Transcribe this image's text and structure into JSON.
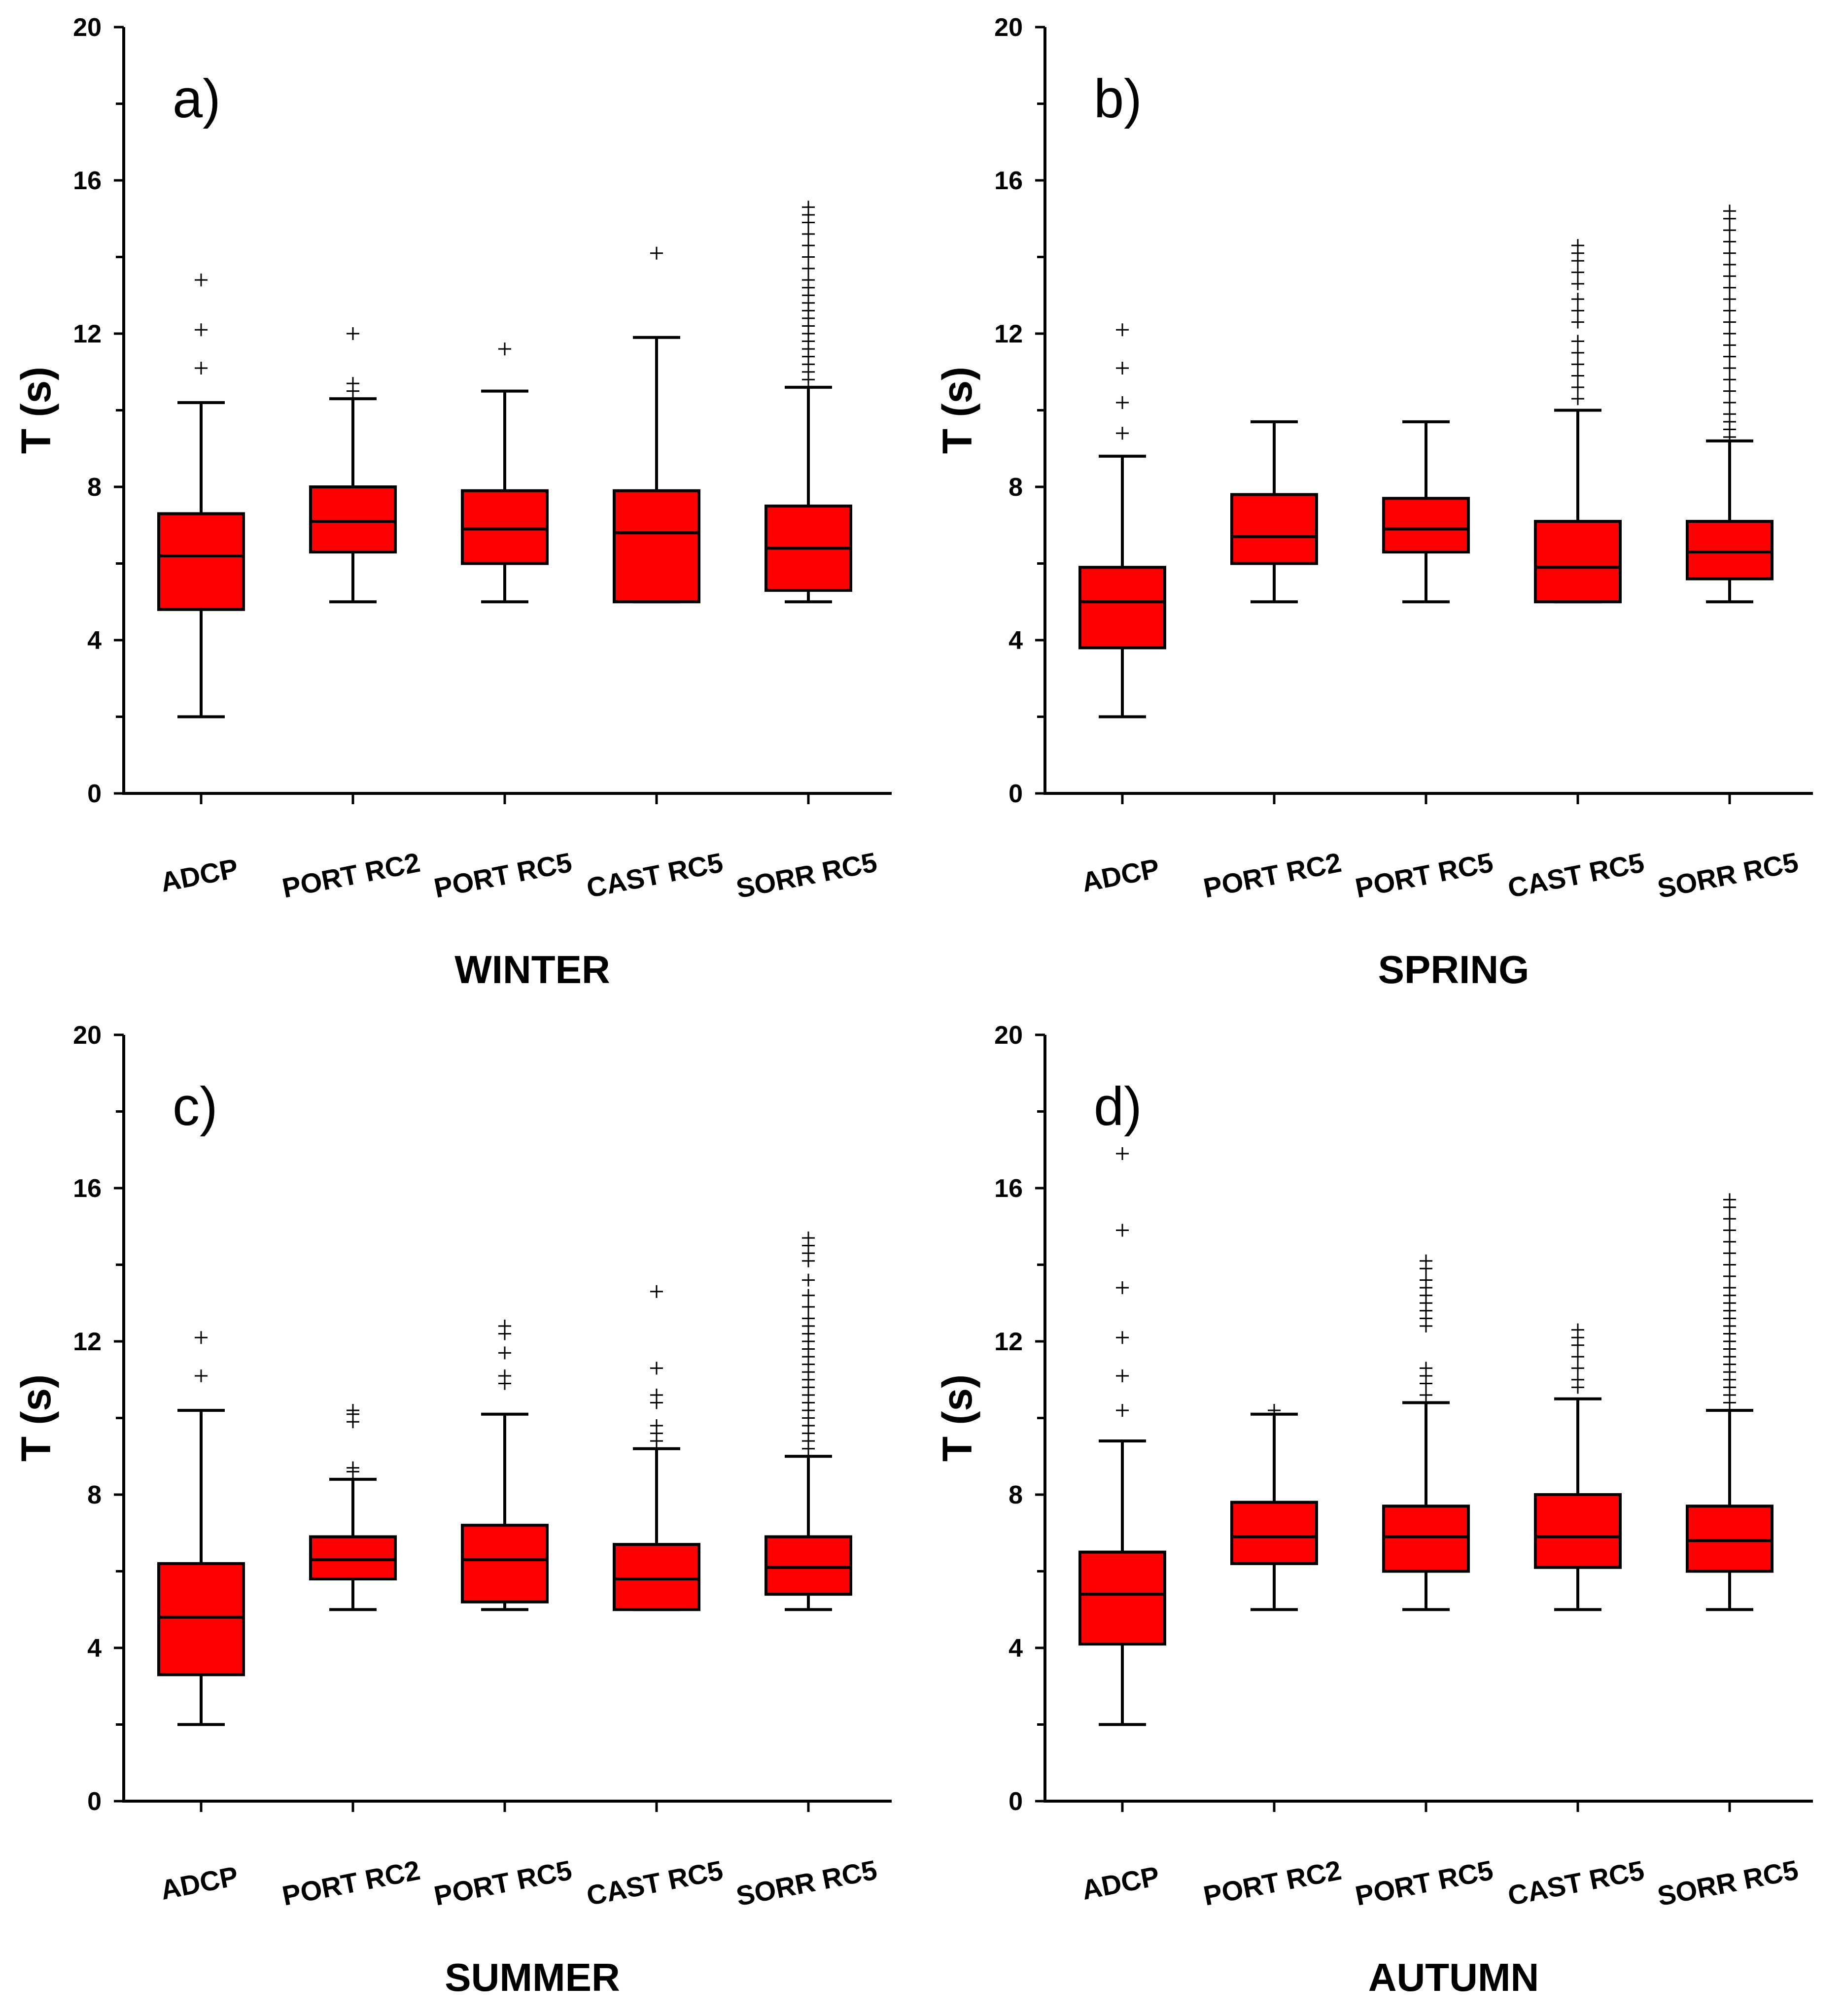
{
  "colors": {
    "box_fill": "#ff0000",
    "stroke": "#000000",
    "background": "#ffffff"
  },
  "chart_data": [
    {
      "type": "boxplot",
      "panel_label": "a)",
      "title": "WINTER",
      "xlabel": "",
      "ylabel": "T (s)",
      "ylim": [
        0,
        20
      ],
      "yticks": [
        "0",
        "4",
        "8",
        "12",
        "16",
        "20"
      ],
      "categories": [
        "ADCP",
        "PORT RC2",
        "PORT RC5",
        "CAST RC5",
        "SORR RC5"
      ],
      "boxes": [
        {
          "category": "ADCP",
          "whisker_low": 2,
          "q1": 4.8,
          "median": 6.2,
          "q3": 7.3,
          "whisker_high": 10.2,
          "outliers": [
            11.1,
            12.1,
            13.4
          ]
        },
        {
          "category": "PORT RC2",
          "whisker_low": 5,
          "q1": 6.3,
          "median": 7.1,
          "q3": 8.0,
          "whisker_high": 10.3,
          "outliers": [
            10.5,
            10.7,
            12.0
          ]
        },
        {
          "category": "PORT RC5",
          "whisker_low": 5,
          "q1": 6.0,
          "median": 6.9,
          "q3": 7.9,
          "whisker_high": 10.5,
          "outliers": [
            11.6
          ]
        },
        {
          "category": "CAST RC5",
          "whisker_low": 5,
          "q1": 5.0,
          "median": 6.8,
          "q3": 7.9,
          "whisker_high": 11.9,
          "outliers": [
            14.1
          ]
        },
        {
          "category": "SORR RC5",
          "whisker_low": 5,
          "q1": 5.3,
          "median": 6.4,
          "q3": 7.5,
          "whisker_high": 10.6,
          "outliers": [
            10.8,
            11.0,
            11.2,
            11.4,
            11.6,
            11.8,
            12.0,
            12.2,
            12.4,
            12.6,
            12.8,
            13.0,
            13.2,
            13.4,
            13.7,
            14.0,
            14.3,
            14.6,
            14.9,
            15.1,
            15.3
          ]
        }
      ]
    },
    {
      "type": "boxplot",
      "panel_label": "b)",
      "title": "SPRING",
      "xlabel": "",
      "ylabel": "T (s)",
      "ylim": [
        0,
        20
      ],
      "yticks": [
        "0",
        "4",
        "8",
        "12",
        "16",
        "20"
      ],
      "categories": [
        "ADCP",
        "PORT RC2",
        "PORT RC5",
        "CAST RC5",
        "SORR RC5"
      ],
      "boxes": [
        {
          "category": "ADCP",
          "whisker_low": 2,
          "q1": 3.8,
          "median": 5.0,
          "q3": 5.9,
          "whisker_high": 8.8,
          "outliers": [
            9.4,
            10.2,
            11.1,
            12.1
          ]
        },
        {
          "category": "PORT RC2",
          "whisker_low": 5,
          "q1": 6.0,
          "median": 6.7,
          "q3": 7.8,
          "whisker_high": 9.7,
          "outliers": []
        },
        {
          "category": "PORT RC5",
          "whisker_low": 5,
          "q1": 6.3,
          "median": 6.9,
          "q3": 7.7,
          "whisker_high": 9.7,
          "outliers": []
        },
        {
          "category": "CAST RC5",
          "whisker_low": 5,
          "q1": 5.0,
          "median": 5.9,
          "q3": 7.1,
          "whisker_high": 10.0,
          "outliers": [
            10.3,
            10.6,
            10.9,
            11.2,
            11.5,
            11.8,
            12.3,
            12.6,
            12.9,
            13.3,
            13.6,
            13.9,
            14.1,
            14.3
          ]
        },
        {
          "category": "SORR RC5",
          "whisker_low": 5,
          "q1": 5.6,
          "median": 6.3,
          "q3": 7.1,
          "whisker_high": 9.2,
          "outliers": [
            9.3,
            9.5,
            9.7,
            9.9,
            10.2,
            10.5,
            10.8,
            11.1,
            11.4,
            11.7,
            12.0,
            12.3,
            12.6,
            12.9,
            13.2,
            13.5,
            13.8,
            14.1,
            14.4,
            14.7,
            15.0,
            15.2
          ]
        }
      ]
    },
    {
      "type": "boxplot",
      "panel_label": "c)",
      "title": "SUMMER",
      "xlabel": "",
      "ylabel": "T (s)",
      "ylim": [
        0,
        20
      ],
      "yticks": [
        "0",
        "4",
        "8",
        "12",
        "16",
        "20"
      ],
      "categories": [
        "ADCP",
        "PORT RC2",
        "PORT RC5",
        "CAST RC5",
        "SORR RC5"
      ],
      "boxes": [
        {
          "category": "ADCP",
          "whisker_low": 2,
          "q1": 3.3,
          "median": 4.8,
          "q3": 6.2,
          "whisker_high": 10.2,
          "outliers": [
            11.1,
            12.1
          ]
        },
        {
          "category": "PORT RC2",
          "whisker_low": 5,
          "q1": 5.8,
          "median": 6.3,
          "q3": 6.9,
          "whisker_high": 8.4,
          "outliers": [
            8.6,
            8.7,
            9.9,
            10.1,
            10.2
          ]
        },
        {
          "category": "PORT RC5",
          "whisker_low": 5,
          "q1": 5.2,
          "median": 6.3,
          "q3": 7.2,
          "whisker_high": 10.1,
          "outliers": [
            10.9,
            11.1,
            11.7,
            12.2,
            12.4
          ]
        },
        {
          "category": "CAST RC5",
          "whisker_low": 5,
          "q1": 5.0,
          "median": 5.8,
          "q3": 6.7,
          "whisker_high": 9.2,
          "outliers": [
            9.4,
            9.6,
            9.8,
            10.4,
            10.6,
            11.3,
            13.3
          ]
        },
        {
          "category": "SORR RC5",
          "whisker_low": 5,
          "q1": 5.4,
          "median": 6.1,
          "q3": 6.9,
          "whisker_high": 9.0,
          "outliers": [
            9.2,
            9.4,
            9.6,
            9.8,
            10.0,
            10.2,
            10.4,
            10.6,
            10.8,
            11.0,
            11.2,
            11.4,
            11.6,
            11.8,
            12.0,
            12.2,
            12.4,
            12.6,
            12.9,
            13.2,
            13.6,
            14.1,
            14.3,
            14.5,
            14.7
          ]
        }
      ]
    },
    {
      "type": "boxplot",
      "panel_label": "d)",
      "title": "AUTUMN",
      "xlabel": "",
      "ylabel": "T (s)",
      "ylim": [
        0,
        20
      ],
      "yticks": [
        "0",
        "4",
        "8",
        "12",
        "16",
        "20"
      ],
      "categories": [
        "ADCP",
        "PORT RC2",
        "PORT RC5",
        "CAST RC5",
        "SORR RC5"
      ],
      "boxes": [
        {
          "category": "ADCP",
          "whisker_low": 2,
          "q1": 4.1,
          "median": 5.4,
          "q3": 6.5,
          "whisker_high": 9.4,
          "outliers": [
            10.2,
            11.1,
            12.1,
            13.4,
            14.9,
            16.9
          ]
        },
        {
          "category": "PORT RC2",
          "whisker_low": 5,
          "q1": 6.2,
          "median": 6.9,
          "q3": 7.8,
          "whisker_high": 10.1,
          "outliers": [
            10.2
          ]
        },
        {
          "category": "PORT RC5",
          "whisker_low": 5,
          "q1": 6.0,
          "median": 6.9,
          "q3": 7.7,
          "whisker_high": 10.4,
          "outliers": [
            10.6,
            10.9,
            11.1,
            11.3,
            12.4,
            12.6,
            12.8,
            13.0,
            13.2,
            13.4,
            13.6,
            13.9,
            14.1
          ]
        },
        {
          "category": "CAST RC5",
          "whisker_low": 5,
          "q1": 6.1,
          "median": 6.9,
          "q3": 8.0,
          "whisker_high": 10.5,
          "outliers": [
            10.8,
            11.0,
            11.3,
            11.6,
            11.9,
            12.1,
            12.3
          ]
        },
        {
          "category": "SORR RC5",
          "whisker_low": 5,
          "q1": 6.0,
          "median": 6.8,
          "q3": 7.7,
          "whisker_high": 10.2,
          "outliers": [
            10.4,
            10.6,
            10.8,
            11.0,
            11.2,
            11.4,
            11.6,
            11.8,
            12.0,
            12.2,
            12.4,
            12.6,
            12.8,
            13.0,
            13.2,
            13.4,
            13.7,
            14.0,
            14.3,
            14.6,
            14.9,
            15.2,
            15.5,
            15.7
          ]
        }
      ]
    }
  ]
}
